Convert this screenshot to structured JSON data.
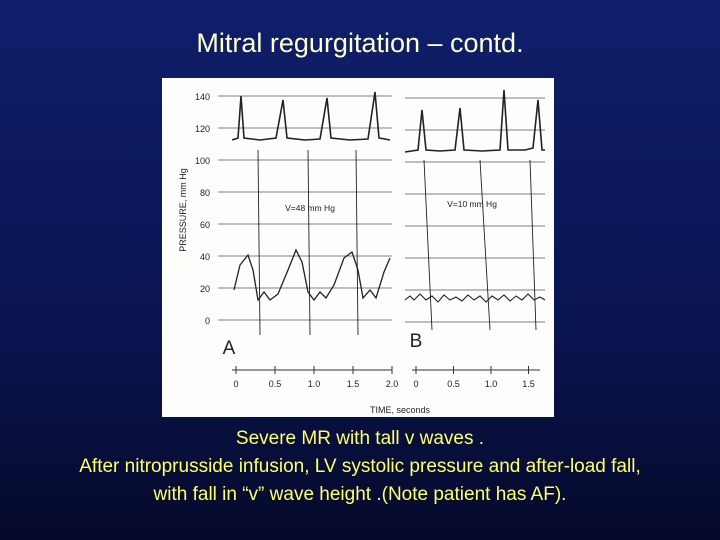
{
  "title": "Mitral regurgitation – contd.",
  "figure": {
    "y_axis_label": "PRESSURE, mm Hg",
    "y_ticks": [
      "140",
      "120",
      "100",
      "80",
      "60",
      "40",
      "20",
      "0"
    ],
    "x_axis_label": "TIME, seconds",
    "panel_a": {
      "label": "A",
      "annotation": "V=48 mm Hg",
      "time_ticks": [
        "0",
        "0.5",
        "1.0",
        "1.5",
        "2.0"
      ]
    },
    "panel_b": {
      "label": "B",
      "annotation": "V=10 mm Hg",
      "time_ticks": [
        "0",
        "0.5",
        "1.0",
        "1.5"
      ]
    }
  },
  "caption": [
    "Severe MR with tall v waves .",
    "After nitroprusside infusion, LV systolic pressure and after-load fall,",
    "with fall in “v” wave height .(Note patient has AF)."
  ]
}
